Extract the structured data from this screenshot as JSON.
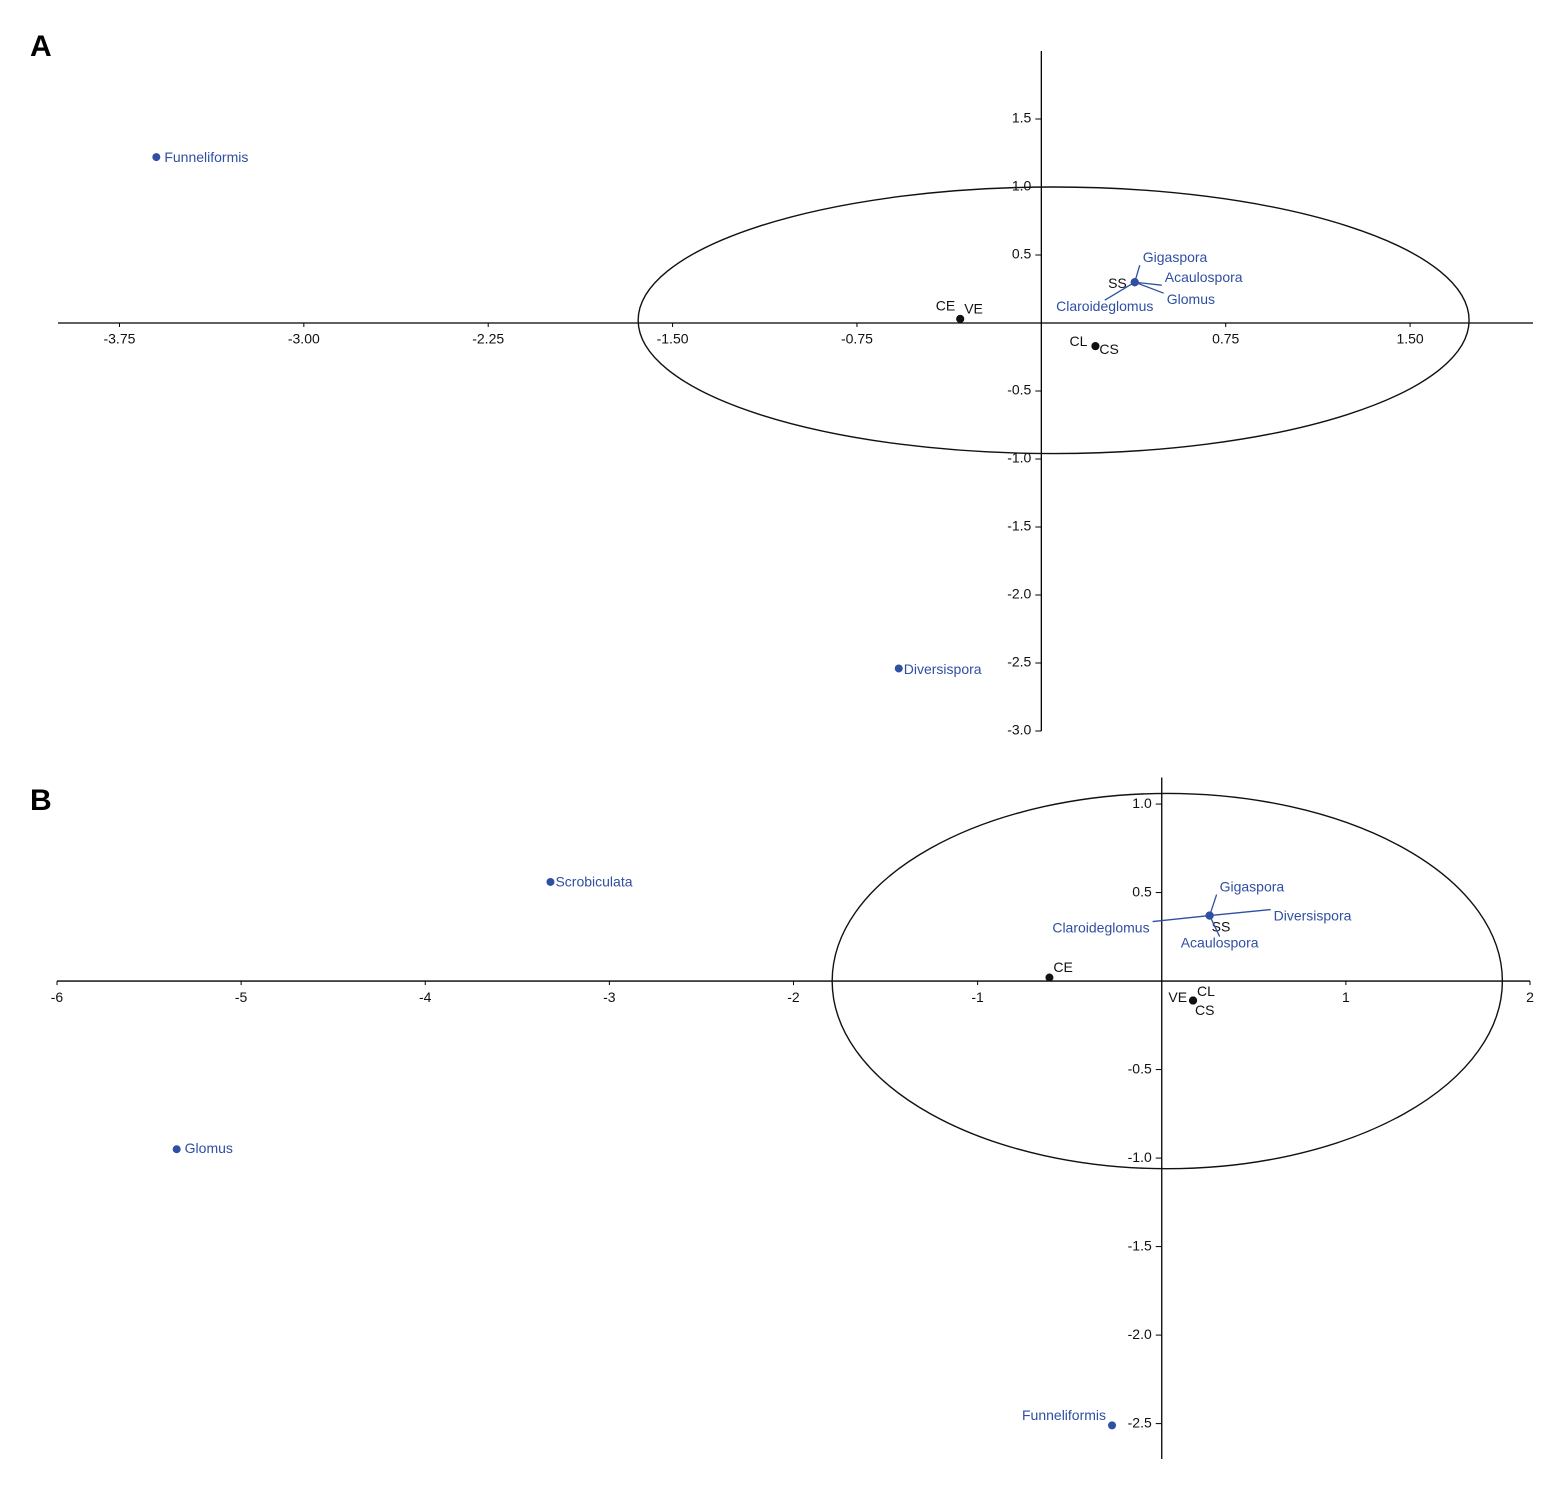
{
  "chart_data": [
    {
      "type": "scatter",
      "panel_label": "A",
      "xlim": [
        -4,
        2
      ],
      "ylim": [
        -3,
        2
      ],
      "xticks": [
        -3.75,
        {
          "value": -3,
          "label": "-3.00"
        },
        -2.25,
        {
          "value": -1.5,
          "label": "-1.50"
        },
        -0.75,
        0.75,
        {
          "value": 1.5,
          "label": "1.50"
        }
      ],
      "yticks": [
        1.5,
        {
          "value": 1,
          "label": "1.0"
        },
        0.5,
        -0.5,
        {
          "value": -1,
          "label": "-1.0"
        },
        -1.5,
        {
          "value": -2,
          "label": "-2.0"
        },
        -2.5,
        {
          "value": -3,
          "label": "-3.0"
        }
      ],
      "ellipse": {
        "cx": 0.05,
        "cy": 0.02,
        "rx": 1.69,
        "ry": 0.98
      },
      "groups": [
        {
          "color": "#111111",
          "labels": [
            "CE",
            "VE",
            "CL",
            "CS",
            "SS"
          ],
          "x": [
            -0.33,
            -0.33,
            0.22,
            0.22,
            0.38
          ],
          "y": [
            0.03,
            0.03,
            -0.17,
            -0.17,
            0.3
          ]
        },
        {
          "color": "#2f4fa2",
          "labels": [
            "Funneliformis",
            "Diversispora",
            "Gigaspora",
            "Acaulospora",
            "Glomus",
            "Claroideglomus"
          ],
          "x": [
            -3.6,
            -0.58,
            0.38,
            0.38,
            0.38,
            0.38
          ],
          "y": [
            1.22,
            -2.54,
            0.3,
            0.3,
            0.3,
            0.3
          ]
        }
      ]
    },
    {
      "type": "scatter",
      "panel_label": "B",
      "xlim": [
        -6,
        2
      ],
      "ylim": [
        -2.7,
        1.15
      ],
      "xticks": [
        -6,
        -5,
        -4,
        -3,
        -2,
        -1,
        1,
        2
      ],
      "yticks": [
        {
          "value": 1,
          "label": "1.0"
        },
        0.5,
        -0.5,
        {
          "value": -1,
          "label": "-1.0"
        },
        -1.5,
        {
          "value": -2,
          "label": "-2.0"
        },
        -2.5
      ],
      "ellipse": {
        "cx": 0.03,
        "cy": 0.0,
        "rx": 1.82,
        "ry": 1.06
      },
      "groups": [
        {
          "color": "#111111",
          "labels": [
            "CE",
            "VE",
            "CL",
            "CS",
            "SS"
          ],
          "x": [
            -0.61,
            0.17,
            0.17,
            0.17,
            0.26
          ],
          "y": [
            0.02,
            -0.11,
            -0.11,
            -0.11,
            0.37
          ]
        },
        {
          "color": "#2f4fa2",
          "labels": [
            "Scrobiculata",
            "Glomus",
            "Gigaspora",
            "Diversispora",
            "Claroideglomus",
            "Acaulospora",
            "Funneliformis"
          ],
          "x": [
            -3.32,
            -5.35,
            0.26,
            0.26,
            0.26,
            0.26,
            -0.27
          ],
          "y": [
            0.56,
            -0.95,
            0.37,
            0.37,
            0.37,
            0.37,
            -2.51
          ]
        }
      ]
    }
  ]
}
